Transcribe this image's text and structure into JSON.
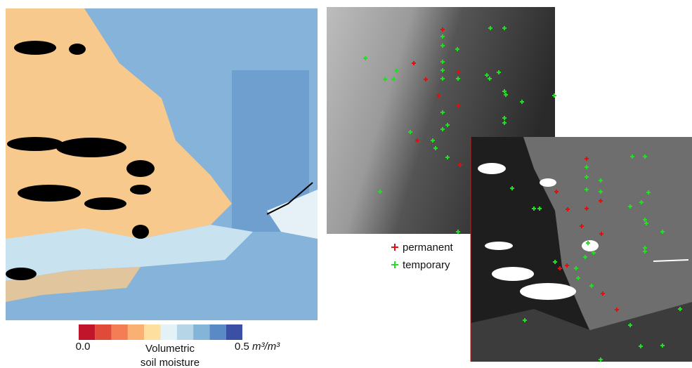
{
  "colorbar": {
    "min": "0.0",
    "max": "0.5",
    "unit": "m³/m³",
    "label_lines": [
      "Volumetric",
      "soil moisture"
    ],
    "colors": [
      "#c0152a",
      "#e04a38",
      "#f47d55",
      "#fab072",
      "#fde0a0",
      "#e3f2f7",
      "#b6d6e8",
      "#84b4d8",
      "#5a8ac5",
      "#3b4fa5"
    ]
  },
  "legend": {
    "items": [
      {
        "label": "permanent",
        "color": "#e01010"
      },
      {
        "label": "temporary",
        "color": "#22dd22"
      }
    ]
  }
}
